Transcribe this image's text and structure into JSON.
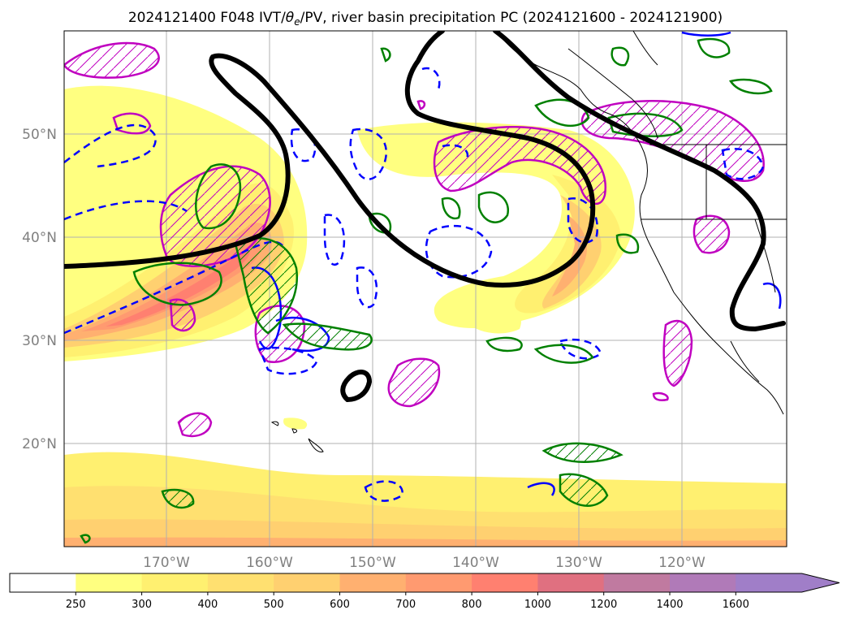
{
  "title": {
    "prefix": "2024121400 F048 IVT/",
    "theta": "θ",
    "theta_sub": "e",
    "suffix": "/PV, river basin precipitation PC (2024121600 - 2024121900)"
  },
  "map": {
    "lat_labels": [
      "50°N",
      "40°N",
      "30°N",
      "20°N"
    ],
    "lon_labels": [
      "170°W",
      "160°W",
      "150°W",
      "140°W",
      "130°W",
      "120°W"
    ],
    "colors": {
      "theta_e_contour": "#000000",
      "pv_positive": "#008000",
      "pv_negative": "#0000ff",
      "precip_contour": "#c000c0",
      "grid": "#b0b0b0"
    }
  },
  "colorbar": {
    "ticks": [
      "250",
      "300",
      "400",
      "500",
      "600",
      "700",
      "800",
      "1000",
      "1200",
      "1400",
      "1600"
    ],
    "colors": [
      "#ffffff",
      "#ffff80",
      "#fff070",
      "#ffe070",
      "#ffd070",
      "#ffb070",
      "#ff9a70",
      "#ff8070",
      "#e07080",
      "#c07aa0",
      "#b07ab8",
      "#a07ec8"
    ],
    "extend": "max"
  }
}
